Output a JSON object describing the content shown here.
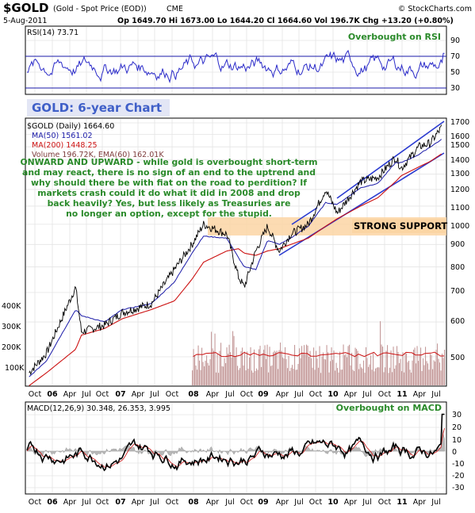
{
  "header": {
    "symbol": "$GOLD",
    "name": "(Gold - Spot Price (EOD))",
    "exchange": "CME",
    "brand": "© StockCharts.com",
    "date": "5-Aug-2011",
    "quote": "Op 1649.70  Hi 1673.00  Lo 1644.20  Cl 1664.60  Vol 196.7K  Chg +13.20 (+0.80%)"
  },
  "panels": {
    "rsi": {
      "label": "RSI(14) 73.71",
      "note": "Overbought on RSI",
      "ticks": [
        "90",
        "70",
        "50",
        "30"
      ]
    },
    "price": {
      "title": "GOLD: 6-year Chart",
      "legend": [
        {
          "text": "$GOLD (Daily) 1664.60",
          "color": "#000000"
        },
        {
          "text": "MA(50) 1561.02",
          "color": "#1a1aa8"
        },
        {
          "text": "MA(200) 1448.25",
          "color": "#cc1111"
        },
        {
          "text": "Volume 196.72K, EMA(60) 162.01K",
          "color": "#7f3d3d"
        }
      ],
      "commentary": [
        "ONWARD AND UPWARD - while gold is overbought short-term",
        "and may react, there is no sign of an end to the uptrend and",
        "why should there be with fiat on the road to perdition? If",
        "markets crash could it do what it did in 2008 and drop",
        "back heavily? Yes, but less likely as Treasuries are",
        "no longer an option, except for the stupid."
      ],
      "support_label": "STRONG SUPPORT",
      "price_ticks": [
        "1700",
        "1600",
        "1500",
        "1400",
        "1300",
        "1200",
        "1100",
        "1000",
        "900",
        "800",
        "700",
        "600",
        "500"
      ],
      "volume_ticks": [
        "400K",
        "300K",
        "200K",
        "100K"
      ]
    },
    "macd": {
      "label": "MACD(12,26,9) 30.348, 26.353, 3.995",
      "note": "Overbought on MACD",
      "ticks": [
        "30",
        "20",
        "10",
        "0",
        "-10",
        "-20",
        "-30"
      ]
    }
  },
  "x_axis_labels": [
    "Oct",
    "06",
    "Apr",
    "Jul",
    "Oct",
    "07",
    "Apr",
    "Jul",
    "Oct",
    "08",
    "Apr",
    "Jul",
    "Oct",
    "09",
    "Apr",
    "Jul",
    "Oct",
    "10",
    "Apr",
    "Jul",
    "Oct",
    "11",
    "Apr",
    "Jul"
  ],
  "chart_data": {
    "type": "line",
    "x": [
      "2005-09",
      "2005-12",
      "2006-05",
      "2006-06",
      "2006-10",
      "2007-01",
      "2007-06",
      "2007-10",
      "2008-01",
      "2008-03",
      "2008-07",
      "2008-09",
      "2008-10",
      "2008-12",
      "2009-02",
      "2009-04",
      "2009-06",
      "2009-09",
      "2009-12",
      "2010-02",
      "2010-06",
      "2010-09",
      "2010-12",
      "2011-01",
      "2011-04",
      "2011-06",
      "2011-08"
    ],
    "series": [
      {
        "name": "$GOLD",
        "values": [
          460,
          510,
          720,
          570,
          590,
          630,
          660,
          790,
          900,
          1000,
          950,
          760,
          720,
          870,
          990,
          870,
          950,
          1000,
          1200,
          1060,
          1250,
          1280,
          1420,
          1340,
          1500,
          1530,
          1664.6
        ]
      },
      {
        "name": "MA(50)",
        "values": [
          450,
          490,
          640,
          620,
          600,
          640,
          660,
          740,
          860,
          940,
          930,
          840,
          800,
          790,
          920,
          900,
          930,
          990,
          1120,
          1110,
          1210,
          1240,
          1380,
          1380,
          1440,
          1500,
          1561.02
        ]
      },
      {
        "name": "MA(200)",
        "values": [
          430,
          460,
          520,
          560,
          580,
          610,
          640,
          670,
          750,
          820,
          870,
          880,
          860,
          850,
          870,
          880,
          900,
          930,
          990,
          1030,
          1100,
          1150,
          1250,
          1290,
          1350,
          1390,
          1448.25
        ]
      }
    ],
    "price_axis": {
      "scale": "log",
      "range": [
        430,
        1720
      ]
    },
    "volume_ticks_k": [
      100,
      200,
      300,
      400
    ],
    "rsi": {
      "value": 73.71,
      "ticks": [
        30,
        50,
        70,
        90
      ],
      "overbought": 70
    },
    "macd": {
      "values": [
        30.348,
        26.353,
        3.995
      ],
      "ticks": [
        -30,
        -20,
        -10,
        0,
        10,
        20,
        30
      ]
    },
    "support_zone": [
      960,
      1045
    ],
    "grid": true
  }
}
